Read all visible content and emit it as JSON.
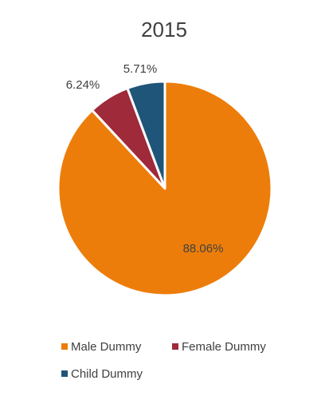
{
  "chart_data": {
    "type": "pie",
    "title": "2015",
    "categories": [
      "Male Dummy",
      "Female Dummy",
      "Child Dummy"
    ],
    "values": [
      88.06,
      6.24,
      5.71
    ],
    "data_labels": [
      "88.06%",
      "6.24%",
      "5.71%"
    ],
    "colors": [
      "#ED7D0A",
      "#9E2A3A",
      "#1F5578"
    ],
    "start_angle_deg": 0,
    "direction": "clockwise",
    "legend_position": "bottom"
  }
}
